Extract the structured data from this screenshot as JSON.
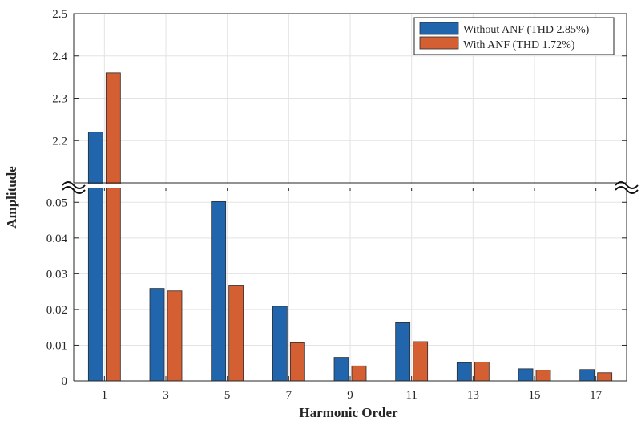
{
  "chart_data": {
    "type": "bar",
    "xlabel": "Harmonic Order",
    "ylabel": "Amplitude",
    "categories": [
      "1",
      "3",
      "5",
      "7",
      "9",
      "11",
      "13",
      "15",
      "17"
    ],
    "series": [
      {
        "name": "Without ANF (THD 2.85%)",
        "color": "#2166ac",
        "values": [
          2.22,
          0.0259,
          0.0502,
          0.0209,
          0.0066,
          0.0163,
          0.0051,
          0.0034,
          0.0032
        ]
      },
      {
        "name": "With ANF (THD 1.72%)",
        "color": "#d35f33",
        "values": [
          2.36,
          0.0252,
          0.0266,
          0.0107,
          0.0042,
          0.011,
          0.0053,
          0.003,
          0.0023
        ]
      }
    ],
    "y_axis_break": true,
    "lower_ylim": [
      0,
      0.055
    ],
    "lower_yticks": [
      "0",
      "0.01",
      "0.02",
      "0.03",
      "0.04",
      "0.05"
    ],
    "upper_ylim": [
      2.1,
      2.5
    ],
    "upper_yticks": [
      "2.2",
      "2.3",
      "2.4",
      "2.5"
    ],
    "legend_position": "top-right",
    "grid": true
  }
}
